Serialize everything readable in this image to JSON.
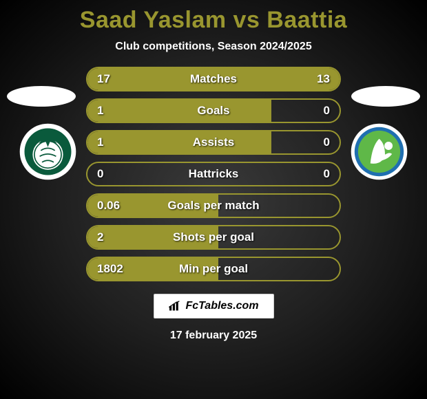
{
  "title_color": "#99962f",
  "border_color": "#99962f",
  "fill_color": "#99962f",
  "title": "Saad Yaslam vs Baattia",
  "subtitle": "Club competitions, Season 2024/2025",
  "rows": [
    {
      "label": "Matches",
      "left": "17",
      "right": "13",
      "fill_pct": 100
    },
    {
      "label": "Goals",
      "left": "1",
      "right": "0",
      "fill_pct": 73
    },
    {
      "label": "Assists",
      "left": "1",
      "right": "0",
      "fill_pct": 73
    },
    {
      "label": "Hattricks",
      "left": "0",
      "right": "0",
      "fill_pct": 0
    },
    {
      "label": "Goals per match",
      "left": "0.06",
      "right": "",
      "fill_pct": 52
    },
    {
      "label": "Shots per goal",
      "left": "2",
      "right": "",
      "fill_pct": 52
    },
    {
      "label": "Min per goal",
      "left": "1802",
      "right": "",
      "fill_pct": 52
    }
  ],
  "logo_text": "FcTables.com",
  "date": "17 february 2025",
  "badge_left": {
    "outer": "#ffffff",
    "mid": "#0a5a3c",
    "inner": "#ffffff",
    "accent": "#0a5a3c"
  },
  "badge_right": {
    "outer": "#ffffff",
    "mid": "#1f6fb0",
    "inner": "#5fb848",
    "accent": "#ffffff"
  }
}
